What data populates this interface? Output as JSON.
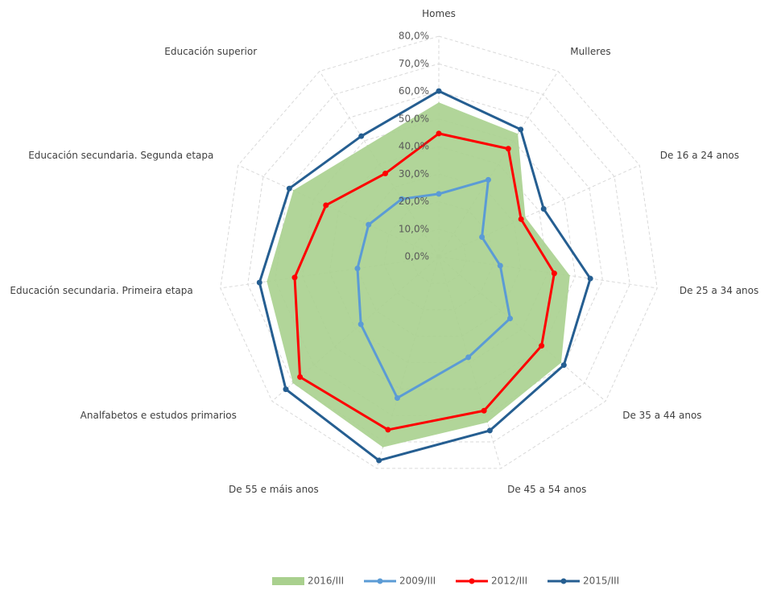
{
  "chart_data": {
    "type": "radar",
    "categories": [
      "Homes",
      "Mulleres",
      "De 16 a 24 anos",
      "De 25 a 34 anos",
      "De 35 a 44 anos",
      "De 45 a 54 anos",
      "De 55 e máis anos",
      "Analfabetos e estudos primarios",
      "Educación secundaria. Primeira etapa",
      "Educación secundaria. Segunda etapa",
      "Educación superior"
    ],
    "ylim": [
      0,
      80
    ],
    "yticks": [
      {
        "value": 0,
        "label": "0,0%"
      },
      {
        "value": 10,
        "label": "10,0%"
      },
      {
        "value": 20,
        "label": "20,0%"
      },
      {
        "value": 30,
        "label": "30,0%"
      },
      {
        "value": 40,
        "label": "40,0%"
      },
      {
        "value": 50,
        "label": "50,0%"
      },
      {
        "value": 60,
        "label": "60,0%"
      },
      {
        "value": 70,
        "label": "70,0%"
      },
      {
        "value": 80,
        "label": "80,0%"
      }
    ],
    "grid": true,
    "legend": "bottom",
    "series": [
      {
        "name": "2016/III",
        "color": "#a9d08e",
        "style": "area",
        "values": [
          56,
          53,
          34.5,
          48,
          58.7,
          62.6,
          72,
          70,
          63,
          58,
          48
        ]
      },
      {
        "name": "2009/III",
        "color": "#5b9bd5",
        "style": "line",
        "values": [
          22.8,
          33.2,
          17.2,
          22.5,
          34.2,
          38,
          53.4,
          37.4,
          29.8,
          28,
          24.9
        ]
      },
      {
        "name": "2012/III",
        "color": "#ff0000",
        "style": "line",
        "values": [
          44.7,
          46.6,
          32.8,
          42.3,
          49.3,
          58.2,
          65.4,
          66.6,
          52.8,
          45,
          35.9
        ]
      },
      {
        "name": "2015/III",
        "color": "#255e91",
        "style": "line",
        "values": [
          60.1,
          54.9,
          41.8,
          55.5,
          60,
          65.7,
          77,
          73.4,
          65.7,
          59.6,
          52
        ]
      }
    ]
  }
}
